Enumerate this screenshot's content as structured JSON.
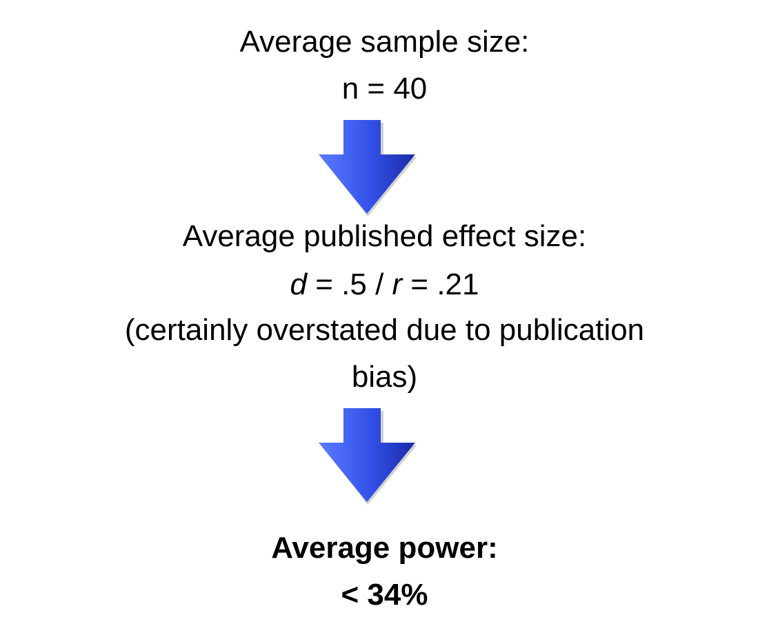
{
  "step1": {
    "line1": "Average sample size:",
    "line2": "n = 40"
  },
  "step2": {
    "line1": "Average published effect size:",
    "line2": {
      "d_symbol": "d",
      "d_value": " = .5 / ",
      "r_symbol": "r",
      "r_value": " = .21"
    },
    "line3": "(certainly overstated due to publication",
    "line4": "bias)"
  },
  "step3": {
    "line1": "Average power:",
    "line2": "< 34%"
  },
  "arrow_colors": {
    "light": "#4a6cf7",
    "dark": "#1c2fb8",
    "shadow": "#9a9a9a"
  }
}
